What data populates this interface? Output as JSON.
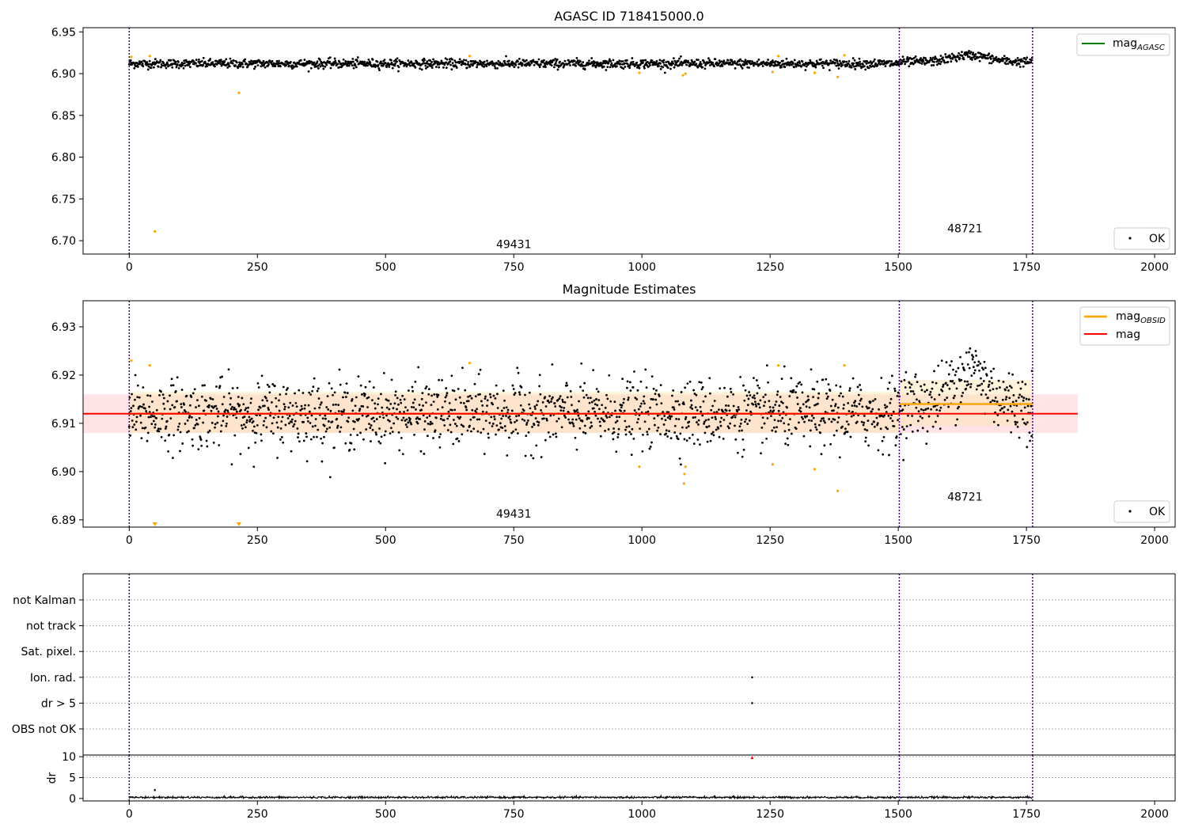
{
  "figure_title": "AGASC ID 718415000.0",
  "colors": {
    "ok_points": "#000000",
    "rejected_points": "#ffa500",
    "mag_agasc_line": "#008000",
    "mag_obsid_line": "#ffa500",
    "mag_line": "#ff0000",
    "mag_band": "#ffc0c8",
    "obsid_band": "#ffe4b0",
    "obsid_boundary": "#4b0082",
    "grid": "#b0b0b0"
  },
  "chart_data": [
    {
      "id": "agasc",
      "type": "scatter",
      "title": "AGASC ID 718415000.0",
      "xlim": [
        -90,
        2040
      ],
      "ylim": [
        6.684,
        6.955
      ],
      "x_ticks": [
        0,
        250,
        500,
        750,
        1000,
        1250,
        1500,
        1750,
        2000
      ],
      "y_ticks": [
        6.7,
        6.75,
        6.8,
        6.85,
        6.9,
        6.95
      ],
      "y_tick_labels": [
        "6.70",
        "6.75",
        "6.80",
        "6.85",
        "6.90",
        "6.95"
      ],
      "obsid_boundaries": [
        0,
        1502,
        1762
      ],
      "obsid_labels": [
        {
          "x": 750,
          "y": 6.691,
          "text": "49431"
        },
        {
          "x": 1630,
          "y": 6.71,
          "text": "48721"
        }
      ],
      "legends": [
        {
          "position": "top-right",
          "entries": [
            {
              "kind": "line",
              "color": "#008000",
              "label": "mag",
              "subscript": "AGASC"
            }
          ]
        },
        {
          "position": "bottom-right",
          "entries": [
            {
              "kind": "dot",
              "color": "#000000",
              "label": "OK"
            }
          ]
        }
      ],
      "ok_series": {
        "n": 1762,
        "base": 6.912,
        "noise": 0.0027,
        "step": {
          "from": 1502,
          "base": 6.914
        },
        "bump": {
          "center": 1640,
          "width": 50,
          "amp": 0.008
        }
      },
      "rejected_points": [
        [
          4,
          6.92
        ],
        [
          40,
          6.921
        ],
        [
          50,
          6.711
        ],
        [
          214,
          6.877
        ],
        [
          664,
          6.921
        ],
        [
          995,
          6.901
        ],
        [
          1080,
          6.898
        ],
        [
          1085,
          6.9
        ],
        [
          1255,
          6.902
        ],
        [
          1266,
          6.921
        ],
        [
          1337,
          6.901
        ],
        [
          1382,
          6.896
        ],
        [
          1395,
          6.922
        ]
      ]
    },
    {
      "id": "magnitude",
      "type": "scatter",
      "title": "Magnitude Estimates",
      "xlim": [
        -90,
        2040
      ],
      "ylim": [
        6.8885,
        6.9354
      ],
      "x_ticks": [
        0,
        250,
        500,
        750,
        1000,
        1250,
        1500,
        1750,
        2000
      ],
      "y_ticks": [
        6.89,
        6.9,
        6.91,
        6.92,
        6.93
      ],
      "y_tick_labels": [
        "6.89",
        "6.90",
        "6.91",
        "6.92",
        "6.93"
      ],
      "obsid_boundaries": [
        0,
        1502,
        1762
      ],
      "obsid_labels": [
        {
          "x": 750,
          "y": 6.8905,
          "text": "49431"
        },
        {
          "x": 1630,
          "y": 6.894,
          "text": "48721"
        }
      ],
      "legends": [
        {
          "position": "top-right",
          "entries": [
            {
              "kind": "line",
              "color": "#ffa500",
              "label": "mag",
              "subscript": "OBSID"
            },
            {
              "kind": "line",
              "color": "#ff0000",
              "label": "mag"
            }
          ]
        },
        {
          "position": "bottom-right",
          "entries": [
            {
              "kind": "dot",
              "color": "#000000",
              "label": "OK"
            }
          ]
        }
      ],
      "mag": {
        "value": 6.912,
        "x_range": [
          -90,
          1850
        ],
        "band": [
          6.908,
          6.916
        ]
      },
      "mag_obsid": [
        {
          "x_range": [
            0,
            1502
          ],
          "value": 6.912,
          "band": [
            6.908,
            6.9165
          ]
        },
        {
          "x_range": [
            1502,
            1762
          ],
          "value": 6.914,
          "band": [
            6.9095,
            6.919
          ]
        }
      ],
      "ok_series": {
        "n": 1762,
        "base": 6.912,
        "noise": 0.0035,
        "step": {
          "from": 1502,
          "base": 6.914
        },
        "bump": {
          "center": 1640,
          "width": 45,
          "amp": 0.007
        }
      },
      "rejected_points": [
        [
          4,
          6.923
        ],
        [
          40,
          6.922
        ],
        [
          664,
          6.9225
        ],
        [
          995,
          6.901
        ],
        [
          1082,
          6.8975
        ],
        [
          1083,
          6.8995
        ],
        [
          1085,
          6.901
        ],
        [
          1255,
          6.9015
        ],
        [
          1266,
          6.922
        ],
        [
          1337,
          6.9005
        ],
        [
          1382,
          6.896
        ],
        [
          1395,
          6.922
        ]
      ],
      "clipped_markers": [
        50,
        214
      ]
    },
    {
      "id": "flags",
      "type": "scatter",
      "xlim": [
        -90,
        2040
      ],
      "categories": [
        "OBS not OK",
        "dr > 5",
        "Ion. rad.",
        "Sat. pixel.",
        "not track",
        "not Kalman"
      ],
      "obsid_boundaries": [
        0,
        1502,
        1762
      ],
      "points": [
        {
          "x": 1215,
          "category": "Ion. rad."
        },
        {
          "x": 1215,
          "category": "dr > 5"
        }
      ]
    },
    {
      "id": "dr",
      "type": "line",
      "xlim": [
        -90,
        2040
      ],
      "ylim": [
        -0.6,
        10.4
      ],
      "ylabel": "dr",
      "y_ticks": [
        0,
        5,
        10
      ],
      "y_tick_labels": [
        "0",
        "5",
        "10"
      ],
      "x_ticks": [
        0,
        250,
        500,
        750,
        1000,
        1250,
        1500,
        1750,
        2000
      ],
      "obsid_boundaries": [
        0,
        1502,
        1762
      ],
      "dr_series": {
        "n": 1762,
        "mean": 0.25,
        "noise": 0.12
      },
      "spike_points": [
        [
          50,
          2.0
        ]
      ],
      "flagged_points": [
        [
          1215,
          9.8
        ]
      ]
    }
  ]
}
